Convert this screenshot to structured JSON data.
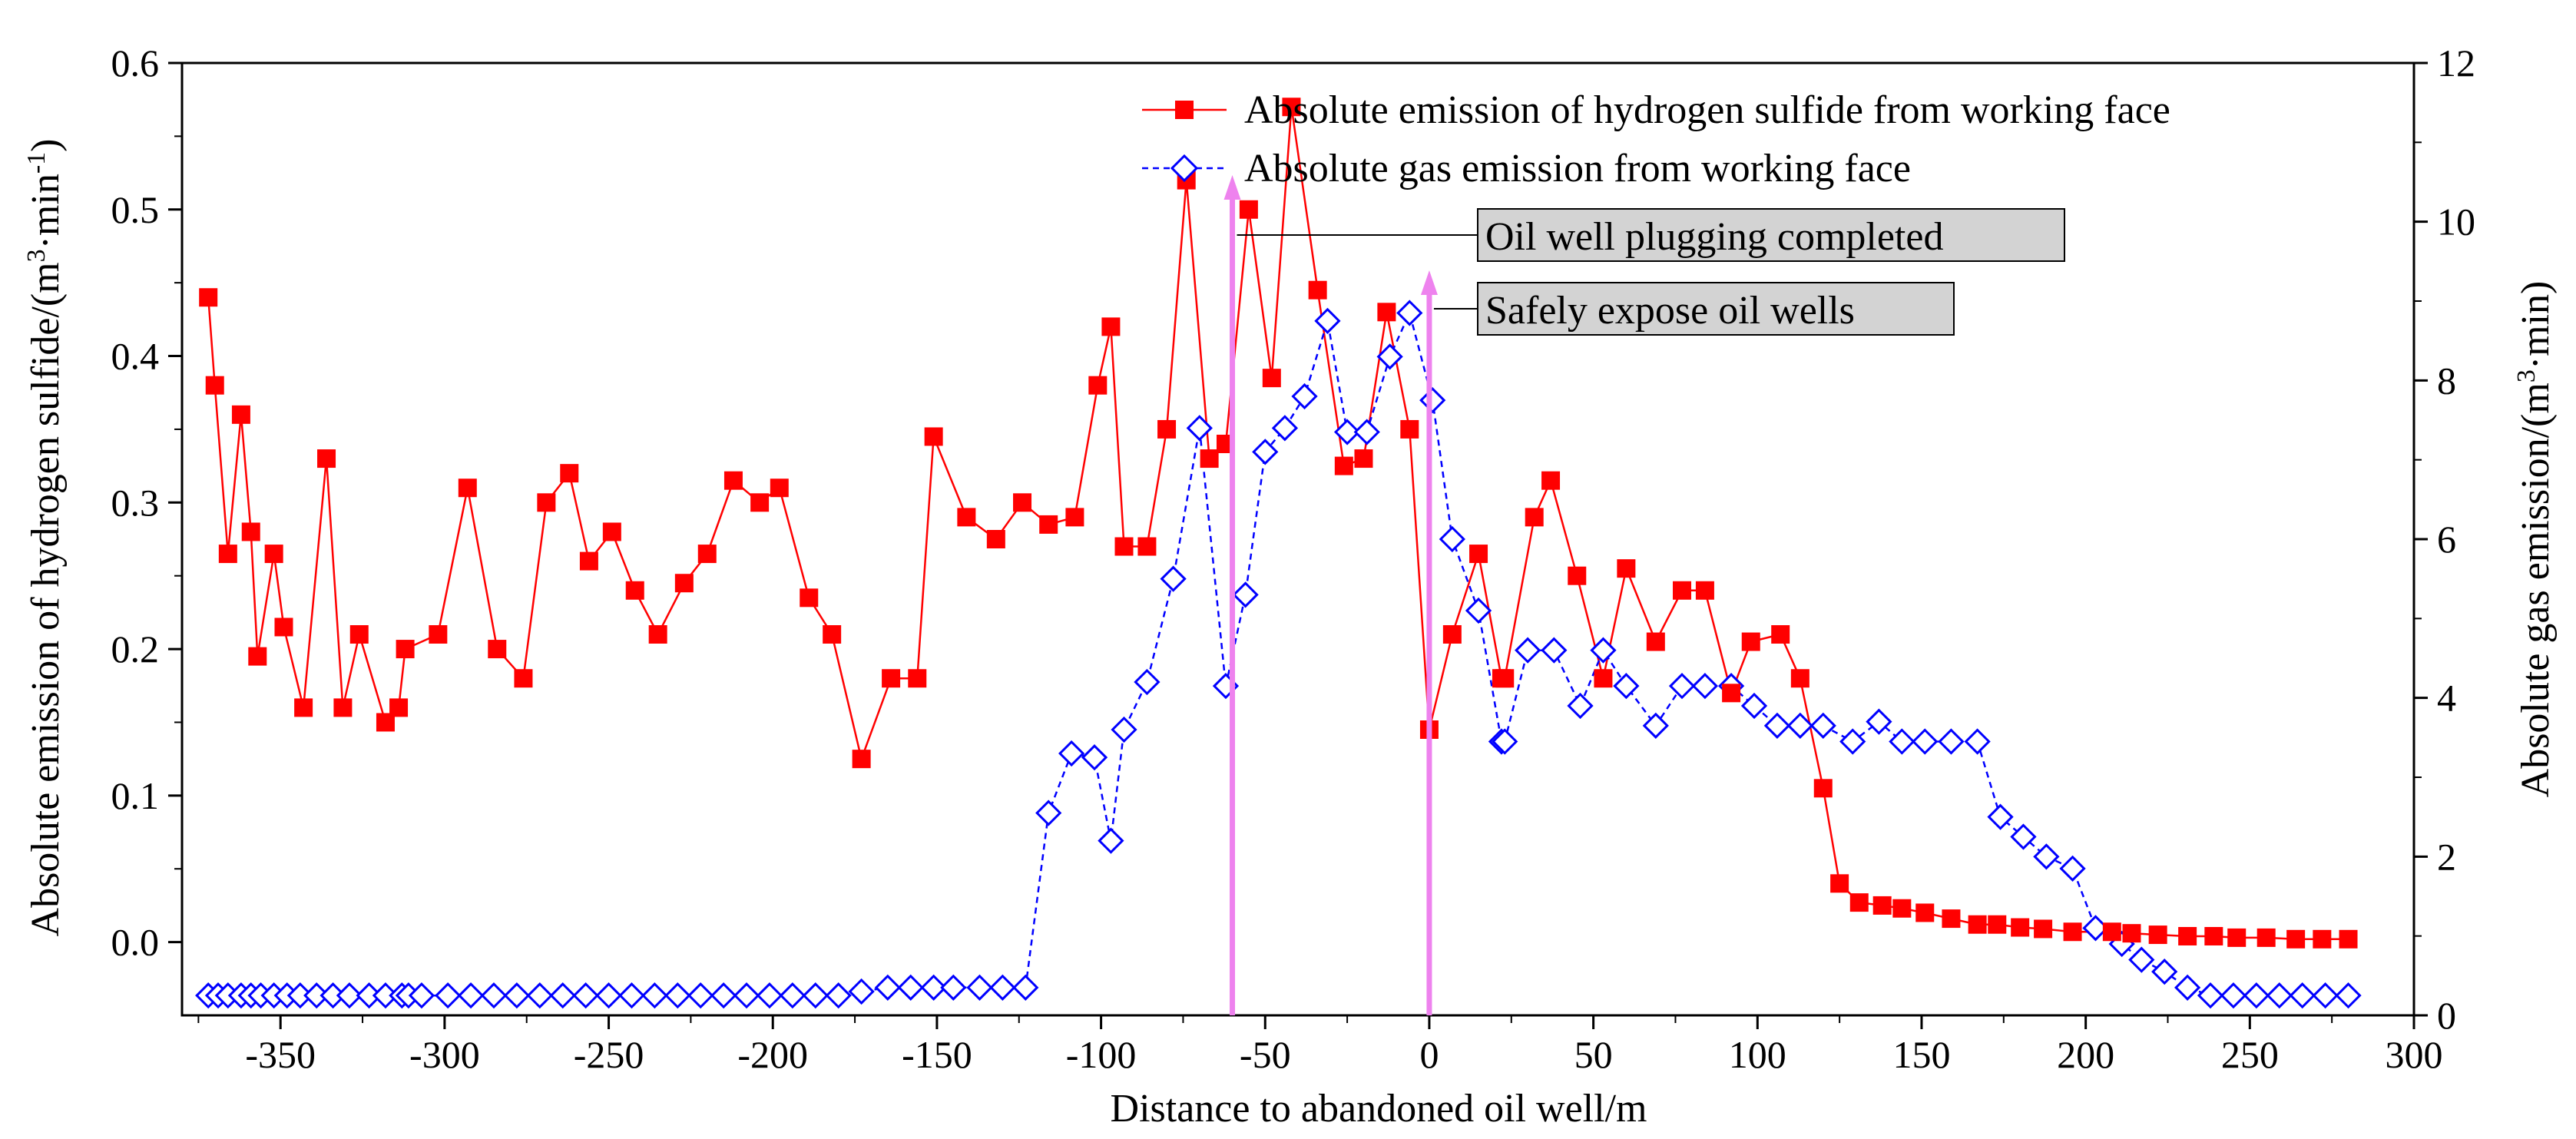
{
  "chart_data": {
    "type": "line",
    "xlabel": "Distance to abandoned oil well/m",
    "ylabel_left": "Absolute emission of hydrogen sulfide/(m",
    "ylabel_left_sup1": "3",
    "ylabel_left_mid": "·min",
    "ylabel_left_sup2": "-1",
    "ylabel_left_end": ")",
    "ylabel_right": "Absolute gas emission/(m",
    "ylabel_right_sup": "3",
    "ylabel_right_end": "·min)",
    "xlim": [
      -380,
      300
    ],
    "ylim_left": [
      -0.05,
      0.6
    ],
    "ylim_right": [
      0,
      12
    ],
    "xticks": [
      -350,
      -300,
      -250,
      -200,
      -150,
      -100,
      -50,
      0,
      50,
      100,
      150,
      200,
      250,
      300
    ],
    "yticks_left": [
      "0.0",
      "0.1",
      "0.2",
      "0.3",
      "0.4",
      "0.5",
      "0.6"
    ],
    "yticks_right": [
      0,
      2,
      4,
      6,
      8,
      10,
      12
    ],
    "colors": {
      "h2s": "#ff0000",
      "gas": "#0000ff",
      "arrow": "#ee82ee",
      "anno_box": "#d3d3d3"
    },
    "series": [
      {
        "name": "Absolute emission of hydrogen sulfide from working face",
        "axis": "left",
        "marker": "square",
        "x": [
          -372,
          -370,
          -366,
          -362,
          -359,
          -357,
          -352,
          -349,
          -343,
          -336,
          -331,
          -326,
          -318,
          -314,
          -312,
          -302,
          -293,
          -284,
          -276,
          -269,
          -262,
          -256,
          -249,
          -242,
          -235,
          -227,
          -220,
          -212,
          -204,
          -198,
          -189,
          -182,
          -173,
          -164,
          -156,
          -151,
          -141,
          -132,
          -124,
          -116,
          -108,
          -101,
          -97,
          -93,
          -86,
          -80,
          -74,
          -67,
          -62,
          -55,
          -48,
          -42,
          -34,
          -26,
          -20,
          -13,
          -6,
          0,
          7,
          15,
          22,
          23,
          32,
          37,
          45,
          53,
          60,
          69,
          77,
          84,
          92,
          98,
          107,
          113,
          120,
          125,
          131,
          138,
          144,
          151,
          159,
          167,
          173,
          180,
          187,
          196,
          208,
          214,
          222,
          231,
          239,
          246,
          255,
          264,
          272,
          280
        ],
        "values": [
          0.44,
          0.38,
          0.265,
          0.36,
          0.28,
          0.195,
          0.265,
          0.215,
          0.16,
          0.33,
          0.16,
          0.21,
          0.15,
          0.16,
          0.2,
          0.21,
          0.31,
          0.2,
          0.18,
          0.3,
          0.32,
          0.26,
          0.28,
          0.24,
          0.21,
          0.245,
          0.265,
          0.315,
          0.3,
          0.31,
          0.235,
          0.21,
          0.125,
          0.18,
          0.18,
          0.345,
          0.29,
          0.275,
          0.3,
          0.285,
          0.29,
          0.38,
          0.42,
          0.27,
          0.27,
          0.35,
          0.52,
          0.33,
          0.34,
          0.5,
          0.385,
          0.57,
          0.445,
          0.325,
          0.33,
          0.43,
          0.35,
          0.145,
          0.21,
          0.265,
          0.18,
          0.18,
          0.29,
          0.315,
          0.25,
          0.18,
          0.255,
          0.205,
          0.24,
          0.24,
          0.17,
          0.205,
          0.21,
          0.18,
          0.105,
          0.04,
          0.027,
          0.025,
          0.023,
          0.02,
          0.016,
          0.012,
          0.012,
          0.01,
          0.009,
          0.007,
          0.007,
          0.006,
          0.005,
          0.004,
          0.004,
          0.003,
          0.003,
          0.002,
          0.002,
          0.002
        ]
      },
      {
        "name": "Absolute gas emission from working face",
        "axis": "right",
        "marker": "diamond",
        "x": [
          -372,
          -369,
          -366,
          -362,
          -359,
          -356,
          -352,
          -348,
          -344,
          -339,
          -334,
          -329,
          -323,
          -318,
          -313,
          -311,
          -307,
          -299,
          -292,
          -285,
          -278,
          -271,
          -264,
          -257,
          -250,
          -243,
          -236,
          -229,
          -222,
          -215,
          -208,
          -201,
          -194,
          -187,
          -180,
          -173,
          -165,
          -158,
          -151,
          -145,
          -137,
          -130,
          -123,
          -116,
          -109,
          -102,
          -97,
          -93,
          -86,
          -78,
          -70,
          -62,
          -56,
          -50,
          -44,
          -38,
          -31,
          -25,
          -19,
          -12,
          -6,
          1,
          7,
          15,
          22,
          23,
          30,
          38,
          46,
          53,
          60,
          69,
          77,
          84,
          92,
          99,
          106,
          113,
          120,
          129,
          137,
          144,
          151,
          159,
          167,
          174,
          181,
          188,
          196,
          203,
          211,
          217,
          224,
          231,
          238,
          245,
          252,
          259,
          266,
          273,
          280
        ],
        "values": [
          0.25,
          0.25,
          0.25,
          0.25,
          0.25,
          0.25,
          0.25,
          0.25,
          0.25,
          0.25,
          0.25,
          0.25,
          0.25,
          0.25,
          0.25,
          0.25,
          0.25,
          0.25,
          0.25,
          0.25,
          0.25,
          0.25,
          0.25,
          0.25,
          0.25,
          0.25,
          0.25,
          0.25,
          0.25,
          0.25,
          0.25,
          0.25,
          0.25,
          0.25,
          0.25,
          0.3,
          0.35,
          0.35,
          0.35,
          0.35,
          0.35,
          0.35,
          0.35,
          2.55,
          3.3,
          3.25,
          2.2,
          3.6,
          4.2,
          5.5,
          7.4,
          4.15,
          5.3,
          7.1,
          7.4,
          7.8,
          8.75,
          7.35,
          7.35,
          8.3,
          8.85,
          7.75,
          6.0,
          5.1,
          3.45,
          3.45,
          4.6,
          4.6,
          3.9,
          4.6,
          4.15,
          3.65,
          4.15,
          4.15,
          4.15,
          3.9,
          3.65,
          3.65,
          3.65,
          3.45,
          3.7,
          3.45,
          3.45,
          3.45,
          3.45,
          2.5,
          2.25,
          2.0,
          1.85,
          1.1,
          0.9,
          0.7,
          0.55,
          0.35,
          0.25,
          0.25,
          0.25,
          0.25,
          0.25,
          0.25,
          0.25
        ]
      }
    ],
    "annotations": [
      {
        "text": "Oil well plugging completed",
        "x": -60
      },
      {
        "text": "Safely expose oil wells",
        "x": 0
      }
    ]
  }
}
